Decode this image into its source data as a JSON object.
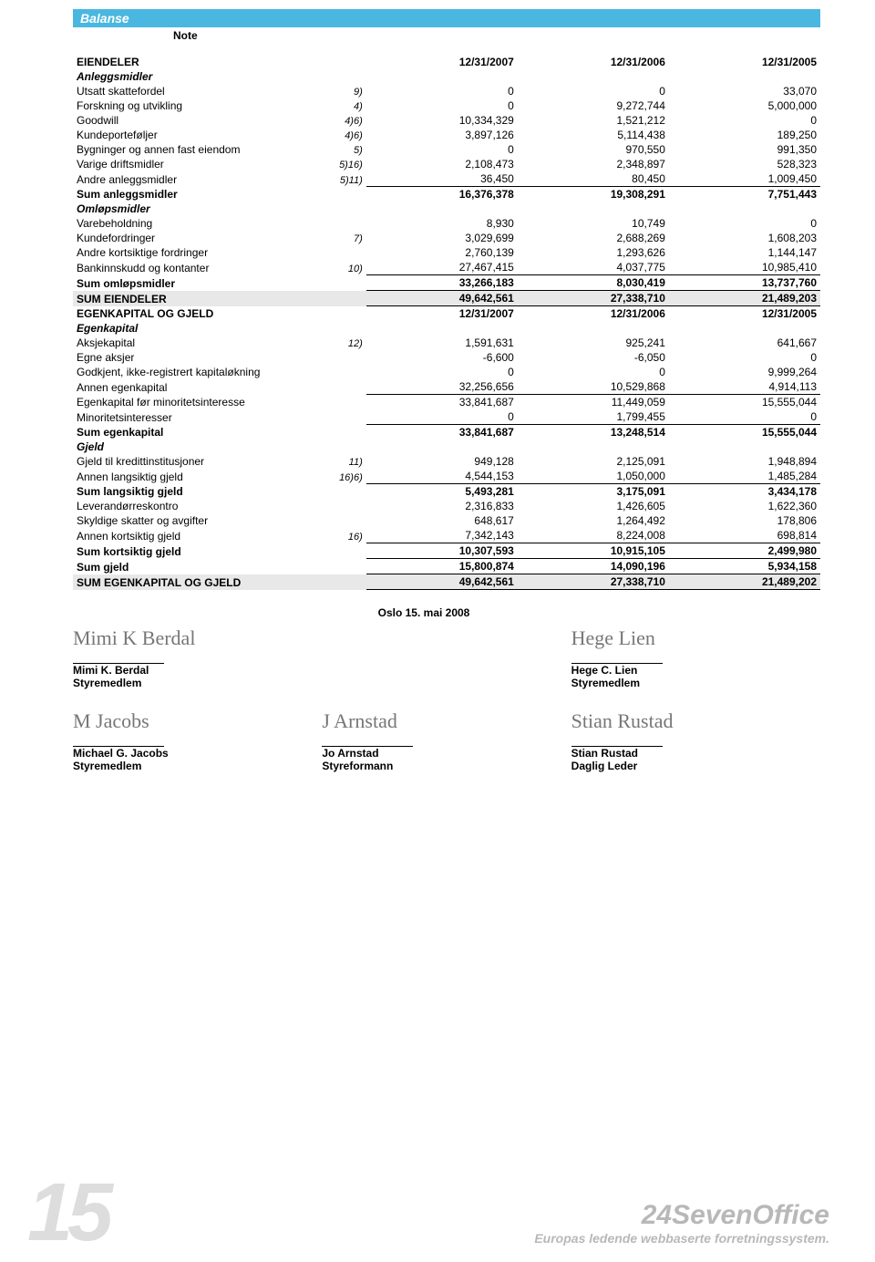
{
  "banner": "Balanse",
  "note_header": "Note",
  "assets_header": {
    "title": "EIENDELER",
    "c1": "12/31/2007",
    "c2": "12/31/2006",
    "c3": "12/31/2005"
  },
  "anleggsmidler": {
    "title": "Anleggsmidler",
    "rows": [
      {
        "label": "Utsatt skattefordel",
        "note": "9)",
        "v1": "0",
        "v2": "0",
        "v3": "33,070"
      },
      {
        "label": "Forskning og utvikling",
        "note": "4)",
        "v1": "0",
        "v2": "9,272,744",
        "v3": "5,000,000"
      },
      {
        "label": "Goodwill",
        "note": "4)6)",
        "v1": "10,334,329",
        "v2": "1,521,212",
        "v3": "0"
      },
      {
        "label": "Kundeporteføljer",
        "note": "4)6)",
        "v1": "3,897,126",
        "v2": "5,114,438",
        "v3": "189,250"
      },
      {
        "label": "Bygninger og annen fast eiendom",
        "note": "5)",
        "v1": "0",
        "v2": "970,550",
        "v3": "991,350"
      },
      {
        "label": "Varige driftsmidler",
        "note": "5)16)",
        "v1": "2,108,473",
        "v2": "2,348,897",
        "v3": "528,323"
      },
      {
        "label": "Andre anleggsmidler",
        "note": "5)11)",
        "v1": "36,450",
        "v2": "80,450",
        "v3": "1,009,450"
      }
    ],
    "sum": {
      "label": "Sum anleggsmidler",
      "v1": "16,376,378",
      "v2": "19,308,291",
      "v3": "7,751,443"
    }
  },
  "omlopsmidler": {
    "title": "Omløpsmidler",
    "rows": [
      {
        "label": "Varebeholdning",
        "note": "",
        "v1": "8,930",
        "v2": "10,749",
        "v3": "0"
      },
      {
        "label": "Kundefordringer",
        "note": "7)",
        "v1": "3,029,699",
        "v2": "2,688,269",
        "v3": "1,608,203"
      },
      {
        "label": "Andre kortsiktige fordringer",
        "note": "",
        "v1": "2,760,139",
        "v2": "1,293,626",
        "v3": "1,144,147"
      },
      {
        "label": "Bankinnskudd og kontanter",
        "note": "10)",
        "v1": "27,467,415",
        "v2": "4,037,775",
        "v3": "10,985,410"
      }
    ],
    "sum": {
      "label": "Sum omløpsmidler",
      "v1": "33,266,183",
      "v2": "8,030,419",
      "v3": "13,737,760"
    }
  },
  "sum_eiendeler": {
    "label": "SUM EIENDELER",
    "v1": "49,642,561",
    "v2": "27,338,710",
    "v3": "21,489,203"
  },
  "ek_header": {
    "title": "EGENKAPITAL OG GJELD",
    "c1": "12/31/2007",
    "c2": "12/31/2006",
    "c3": "12/31/2005"
  },
  "egenkapital": {
    "title": "Egenkapital",
    "rows": [
      {
        "label": "Aksjekapital",
        "note": "12)",
        "v1": "1,591,631",
        "v2": "925,241",
        "v3": "641,667"
      },
      {
        "label": "Egne aksjer",
        "note": "",
        "v1": "-6,600",
        "v2": "-6,050",
        "v3": "0"
      },
      {
        "label": "Godkjent, ikke-registrert kapitaløkning",
        "note": "",
        "v1": "0",
        "v2": "0",
        "v3": "9,999,264"
      },
      {
        "label": "Annen egenkapital",
        "note": "",
        "v1": "32,256,656",
        "v2": "10,529,868",
        "v3": "4,914,113"
      }
    ],
    "sub": {
      "label": "Egenkapital før minoritetsinteresse",
      "v1": "33,841,687",
      "v2": "11,449,059",
      "v3": "15,555,044"
    },
    "minor": {
      "label": "Minoritetsinteresser",
      "v1": "0",
      "v2": "1,799,455",
      "v3": "0"
    },
    "sum": {
      "label": "Sum egenkapital",
      "v1": "33,841,687",
      "v2": "13,248,514",
      "v3": "15,555,044"
    }
  },
  "gjeld": {
    "title": "Gjeld",
    "lang": [
      {
        "label": "Gjeld til kredittinstitusjoner",
        "note": "11)",
        "v1": "949,128",
        "v2": "2,125,091",
        "v3": "1,948,894"
      },
      {
        "label": "Annen langsiktig gjeld",
        "note": "16)6)",
        "v1": "4,544,153",
        "v2": "1,050,000",
        "v3": "1,485,284"
      }
    ],
    "lang_sum": {
      "label": "Sum langsiktig gjeld",
      "v1": "5,493,281",
      "v2": "3,175,091",
      "v3": "3,434,178"
    },
    "kort": [
      {
        "label": "Leverandørreskontro",
        "note": "",
        "v1": "2,316,833",
        "v2": "1,426,605",
        "v3": "1,622,360"
      },
      {
        "label": "Skyldige skatter og avgifter",
        "note": "",
        "v1": "648,617",
        "v2": "1,264,492",
        "v3": "178,806"
      },
      {
        "label": "Annen kortsiktig gjeld",
        "note": "16)",
        "v1": "7,342,143",
        "v2": "8,224,008",
        "v3": "698,814"
      }
    ],
    "kort_sum": {
      "label": "Sum kortsiktig gjeld",
      "v1": "10,307,593",
      "v2": "10,915,105",
      "v3": "2,499,980"
    },
    "sum": {
      "label": "Sum gjeld",
      "v1": "15,800,874",
      "v2": "14,090,196",
      "v3": "5,934,158"
    }
  },
  "sum_ek_gjeld": {
    "label": "SUM EGENKAPITAL OG GJELD",
    "v1": "49,642,561",
    "v2": "27,338,710",
    "v3": "21,489,202"
  },
  "sig": {
    "date": "Oslo 15. mai 2008",
    "p1_name": "Mimi K. Berdal",
    "p1_role": "Styremedlem",
    "p2_name": "Hege C. Lien",
    "p2_role": "Styremedlem",
    "p3_name": "Michael G. Jacobs",
    "p3_role": "Styremedlem",
    "p4_name": "Jo Arnstad",
    "p4_role": "Styreformann",
    "p5_name": "Stian Rustad",
    "p5_role": "Daglig Leder"
  },
  "footer": {
    "page": "15",
    "brand": "24SevenOffice",
    "tag": "Europas ledende webbaserte forretningssystem."
  },
  "colors": {
    "banner_bg": "#4ab7e0",
    "shade_bg": "#e8e8e8",
    "footer_gray": "#dddddd",
    "brand_gray": "#b8b8b8"
  }
}
